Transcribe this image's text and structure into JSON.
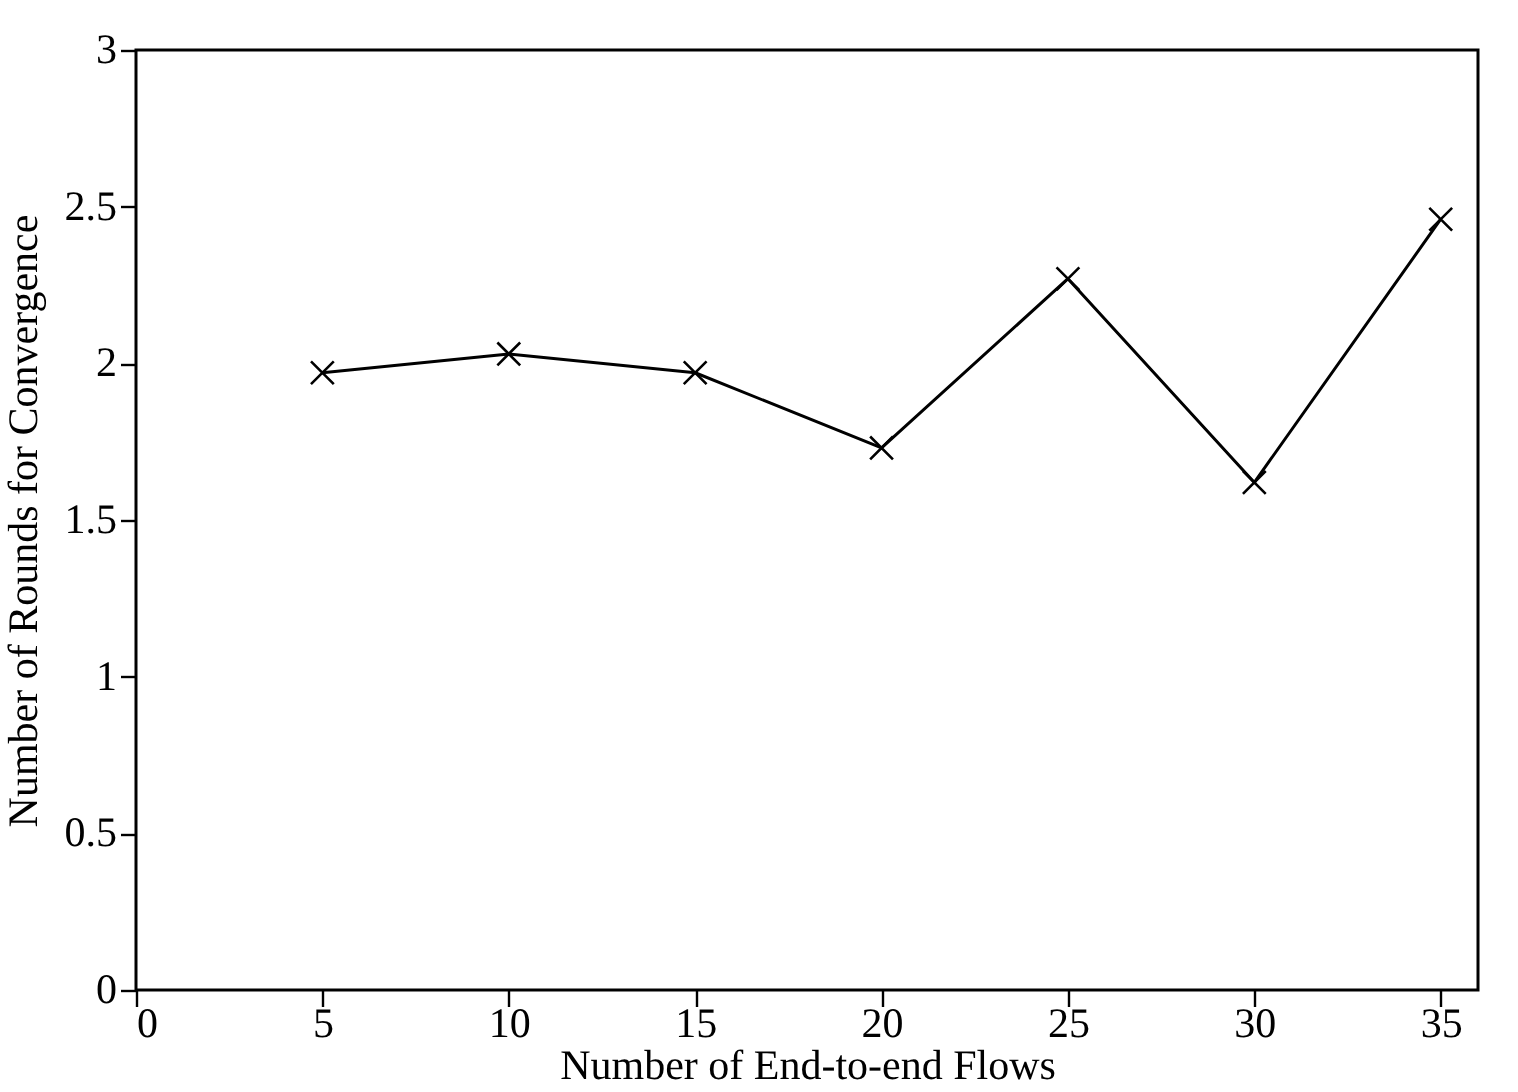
{
  "chart_data": {
    "type": "line",
    "xlabel": "Number of End-to-end Flows",
    "ylabel": "Number of Rounds for Convergence",
    "x": [
      5,
      10,
      15,
      20,
      25,
      30,
      35
    ],
    "series": [
      {
        "color": "#000000",
        "values": [
          1.97,
          2.03,
          1.97,
          1.73,
          2.27,
          1.62,
          2.46
        ]
      }
    ],
    "xlim": [
      0,
      36
    ],
    "xticks": [
      0,
      5,
      10,
      15,
      20,
      25,
      30,
      35
    ],
    "ylim": [
      0,
      3
    ],
    "yticks": [
      0,
      0.5,
      1,
      1.5,
      2,
      2.5,
      3
    ],
    "marker": "cross",
    "line_style": "solid",
    "grid": false
  }
}
